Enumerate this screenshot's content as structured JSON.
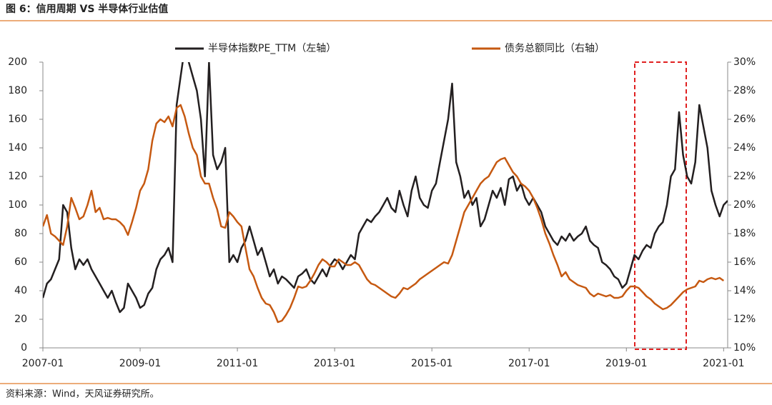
{
  "chart_data": {
    "type": "line",
    "title": "图 6：信用周期 VS 半导体行业估值",
    "source": "资料来源：Wind，天风证券研究所。",
    "x": [
      "2007-01",
      "2007-02",
      "2007-03",
      "2007-04",
      "2007-05",
      "2007-06",
      "2007-07",
      "2007-08",
      "2007-09",
      "2007-10",
      "2007-11",
      "2007-12",
      "2008-01",
      "2008-02",
      "2008-03",
      "2008-04",
      "2008-05",
      "2008-06",
      "2008-07",
      "2008-08",
      "2008-09",
      "2008-10",
      "2008-11",
      "2008-12",
      "2009-01",
      "2009-02",
      "2009-03",
      "2009-04",
      "2009-05",
      "2009-06",
      "2009-07",
      "2009-08",
      "2009-09",
      "2009-10",
      "2009-11",
      "2009-12",
      "2010-01",
      "2010-02",
      "2010-03",
      "2010-04",
      "2010-05",
      "2010-06",
      "2010-07",
      "2010-08",
      "2010-09",
      "2010-10",
      "2010-11",
      "2010-12",
      "2011-01",
      "2011-02",
      "2011-03",
      "2011-04",
      "2011-05",
      "2011-06",
      "2011-07",
      "2011-08",
      "2011-09",
      "2011-10",
      "2011-11",
      "2011-12",
      "2012-01",
      "2012-02",
      "2012-03",
      "2012-04",
      "2012-05",
      "2012-06",
      "2012-07",
      "2012-08",
      "2012-09",
      "2012-10",
      "2012-11",
      "2012-12",
      "2013-01",
      "2013-02",
      "2013-03",
      "2013-04",
      "2013-05",
      "2013-06",
      "2013-07",
      "2013-08",
      "2013-09",
      "2013-10",
      "2013-11",
      "2013-12",
      "2014-01",
      "2014-02",
      "2014-03",
      "2014-04",
      "2014-05",
      "2014-06",
      "2014-07",
      "2014-08",
      "2014-09",
      "2014-10",
      "2014-11",
      "2014-12",
      "2015-01",
      "2015-02",
      "2015-03",
      "2015-04",
      "2015-05",
      "2015-06",
      "2015-07",
      "2015-08",
      "2015-09",
      "2015-10",
      "2015-11",
      "2015-12",
      "2016-01",
      "2016-02",
      "2016-03",
      "2016-04",
      "2016-05",
      "2016-06",
      "2016-07",
      "2016-08",
      "2016-09",
      "2016-10",
      "2016-11",
      "2016-12",
      "2017-01",
      "2017-02",
      "2017-03",
      "2017-04",
      "2017-05",
      "2017-06",
      "2017-07",
      "2017-08",
      "2017-09",
      "2017-10",
      "2017-11",
      "2017-12",
      "2018-01",
      "2018-02",
      "2018-03",
      "2018-04",
      "2018-05",
      "2018-06",
      "2018-07",
      "2018-08",
      "2018-09",
      "2018-10",
      "2018-11",
      "2018-12",
      "2019-01",
      "2019-02",
      "2019-03",
      "2019-04",
      "2019-05",
      "2019-06",
      "2019-07",
      "2019-08",
      "2019-09",
      "2019-10",
      "2019-11",
      "2019-12",
      "2020-01",
      "2020-02",
      "2020-03",
      "2020-04",
      "2020-05",
      "2020-06",
      "2020-07",
      "2020-08",
      "2020-09",
      "2020-10",
      "2020-11",
      "2020-12",
      "2021-01",
      "2021-02"
    ],
    "xlim": [
      "2007-01",
      "2021-02"
    ],
    "xticks": [
      "2007-01",
      "2009-01",
      "2011-01",
      "2013-01",
      "2015-01",
      "2017-01",
      "2019-01",
      "2021-01"
    ],
    "ylim": [
      0,
      200
    ],
    "yticks": [
      0,
      20,
      40,
      60,
      80,
      100,
      120,
      140,
      160,
      180,
      200
    ],
    "y2lim": [
      10,
      30
    ],
    "y2ticks": [
      {
        "value": 10,
        "label": "10%"
      },
      {
        "value": 12,
        "label": "12%"
      },
      {
        "value": 14,
        "label": "14%"
      },
      {
        "value": 16,
        "label": "16%"
      },
      {
        "value": 18,
        "label": "18%"
      },
      {
        "value": 20,
        "label": "20%"
      },
      {
        "value": 22,
        "label": "22%"
      },
      {
        "value": 24,
        "label": "24%"
      },
      {
        "value": 26,
        "label": "26%"
      },
      {
        "value": 28,
        "label": "28%"
      },
      {
        "value": 30,
        "label": "30%"
      }
    ],
    "series": [
      {
        "name": "半导体指数PE_TTM（左轴）",
        "color": "#231f20",
        "values": [
          35,
          45,
          48,
          55,
          62,
          100,
          95,
          70,
          55,
          62,
          58,
          62,
          55,
          50,
          45,
          40,
          35,
          40,
          32,
          25,
          28,
          45,
          40,
          35,
          28,
          30,
          38,
          42,
          55,
          62,
          65,
          70,
          60,
          170,
          190,
          210,
          200,
          190,
          180,
          160,
          120,
          200,
          135,
          125,
          130,
          140,
          60,
          65,
          60,
          70,
          75,
          85,
          75,
          65,
          70,
          60,
          50,
          55,
          45,
          50,
          48,
          45,
          42,
          50,
          52,
          55,
          48,
          45,
          50,
          55,
          50,
          58,
          62,
          60,
          55,
          60,
          65,
          62,
          80,
          85,
          90,
          88,
          92,
          95,
          100,
          105,
          98,
          95,
          110,
          100,
          92,
          110,
          120,
          105,
          100,
          98,
          110,
          115,
          130,
          145,
          160,
          185,
          130,
          120,
          105,
          110,
          100,
          105,
          85,
          90,
          100,
          110,
          105,
          112,
          100,
          118,
          120,
          110,
          115,
          105,
          100,
          105,
          100,
          95,
          85,
          80,
          75,
          72,
          78,
          75,
          80,
          75,
          78,
          80,
          85,
          75,
          72,
          70,
          60,
          58,
          55,
          50,
          48,
          42,
          45,
          55,
          65,
          62,
          68,
          72,
          70,
          80,
          85,
          88,
          100,
          120,
          125,
          165,
          135,
          120,
          115,
          130,
          170,
          155,
          140,
          110,
          100,
          92,
          100,
          103
        ]
      },
      {
        "name": "债务总额同比（右轴）",
        "color": "#c65911",
        "axis": "y2",
        "values": [
          18.5,
          19.3,
          18.0,
          17.8,
          17.5,
          17.2,
          18.5,
          20.5,
          19.8,
          19.0,
          19.2,
          20.0,
          21.0,
          19.5,
          19.8,
          19.0,
          19.1,
          19.0,
          19.0,
          18.8,
          18.5,
          17.9,
          18.8,
          19.8,
          21.0,
          21.5,
          22.5,
          24.5,
          25.7,
          26.0,
          25.8,
          26.2,
          25.5,
          26.8,
          27.0,
          26.2,
          25.0,
          24.0,
          23.5,
          22.0,
          21.5,
          21.5,
          20.5,
          19.7,
          18.5,
          18.4,
          19.5,
          19.2,
          18.8,
          18.5,
          17.0,
          15.5,
          15.0,
          14.2,
          13.5,
          13.1,
          13.0,
          12.5,
          11.8,
          11.9,
          12.3,
          12.8,
          13.5,
          14.3,
          14.2,
          14.3,
          14.7,
          15.2,
          15.8,
          16.2,
          16.0,
          15.7,
          15.7,
          16.2,
          16.0,
          15.8,
          15.8,
          16.0,
          15.8,
          15.3,
          14.8,
          14.5,
          14.4,
          14.2,
          14.0,
          13.8,
          13.6,
          13.5,
          13.8,
          14.2,
          14.1,
          14.3,
          14.5,
          14.8,
          15.0,
          15.2,
          15.4,
          15.6,
          15.8,
          16.0,
          15.9,
          16.5,
          17.5,
          18.5,
          19.5,
          20.0,
          20.5,
          21.0,
          21.5,
          21.8,
          22.0,
          22.5,
          23.0,
          23.2,
          23.3,
          22.8,
          22.3,
          22.0,
          21.5,
          21.3,
          21.0,
          20.5,
          19.8,
          19.0,
          18.0,
          17.3,
          16.5,
          15.8,
          15.0,
          15.3,
          14.8,
          14.6,
          14.4,
          14.3,
          14.2,
          13.8,
          13.6,
          13.8,
          13.7,
          13.6,
          13.7,
          13.5,
          13.5,
          13.6,
          14.0,
          14.3,
          14.3,
          14.2,
          13.9,
          13.6,
          13.4,
          13.1,
          12.9,
          12.7,
          12.8,
          13.0,
          13.3,
          13.6,
          13.9,
          14.1,
          14.2,
          14.3,
          14.7,
          14.6,
          14.8,
          14.9,
          14.8,
          14.9,
          14.7,
          null
        ]
      }
    ]
  }
}
